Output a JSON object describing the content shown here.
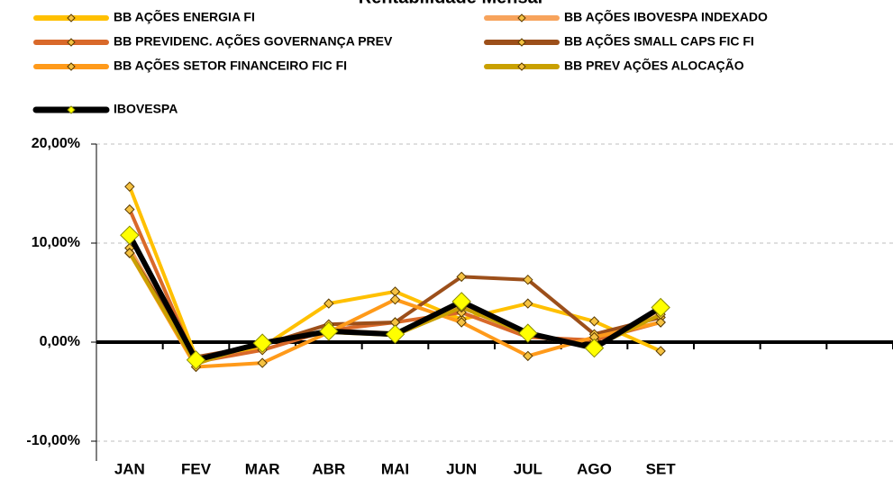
{
  "chart_data": {
    "type": "line",
    "title": "Rentabilidade Mensal",
    "categories": [
      "JAN",
      "FEV",
      "MAR",
      "ABR",
      "MAI",
      "JUN",
      "JUL",
      "AGO",
      "SET",
      null,
      null,
      null
    ],
    "series": [
      {
        "name": "BB AÇÕES ENERGIA FI",
        "color": "#FFC000",
        "values": [
          15.7,
          -1.5,
          -0.5,
          3.9,
          5.1,
          2.3,
          3.9,
          2.1,
          -0.9,
          null,
          null,
          null
        ]
      },
      {
        "name": "BB AÇÕES IBOVESPA INDEXADO",
        "color": "#F7A35C",
        "values": [
          9.5,
          -2.2,
          0,
          1.2,
          0.9,
          3.8,
          0.7,
          -0.5,
          3.3,
          null,
          null,
          null
        ]
      },
      {
        "name": "BB PREVIDENC. AÇÕES GOVERNANÇA PREV",
        "color": "#D9692A",
        "values": [
          13.4,
          -2.0,
          -0.8,
          1.2,
          2.0,
          3.0,
          0.5,
          0.2,
          2.0,
          null,
          null,
          null
        ]
      },
      {
        "name": "BB AÇÕES SMALL CAPS FIC FI",
        "color": "#9C4F1A",
        "values": [
          9.0,
          -1.5,
          -0.3,
          1.8,
          2.0,
          6.6,
          6.3,
          0.8,
          2.5,
          null,
          null,
          null
        ]
      },
      {
        "name": "BB AÇÕES SETOR FINANCEIRO FIC FI",
        "color": "#FF9A1A",
        "values": [
          9.0,
          -2.5,
          -2.1,
          1.0,
          4.3,
          2.0,
          -1.4,
          0.5,
          2.0,
          null,
          null,
          null
        ]
      },
      {
        "name": "BB PREV AÇÕES  ALOCAÇÃO",
        "color": "#C9A000",
        "values": [
          9.0,
          -2.2,
          0,
          1.0,
          0.7,
          3.5,
          0.8,
          -0.5,
          2.8,
          null,
          null,
          null
        ]
      },
      {
        "name": "IBOVESPA",
        "color": "#000000",
        "marker_color": "#FFFF00",
        "values": [
          10.8,
          -1.8,
          -0.1,
          1.1,
          0.8,
          4.1,
          0.9,
          -0.6,
          3.5,
          null,
          null,
          null
        ]
      }
    ],
    "ylim": [
      -12,
      20
    ],
    "yticks": [
      {
        "value": -10,
        "label": "-10,00%"
      },
      {
        "value": 0,
        "label": "0,00%"
      },
      {
        "value": 10,
        "label": "10,00%"
      },
      {
        "value": 20,
        "label": "20,00%"
      }
    ],
    "grid": true
  }
}
